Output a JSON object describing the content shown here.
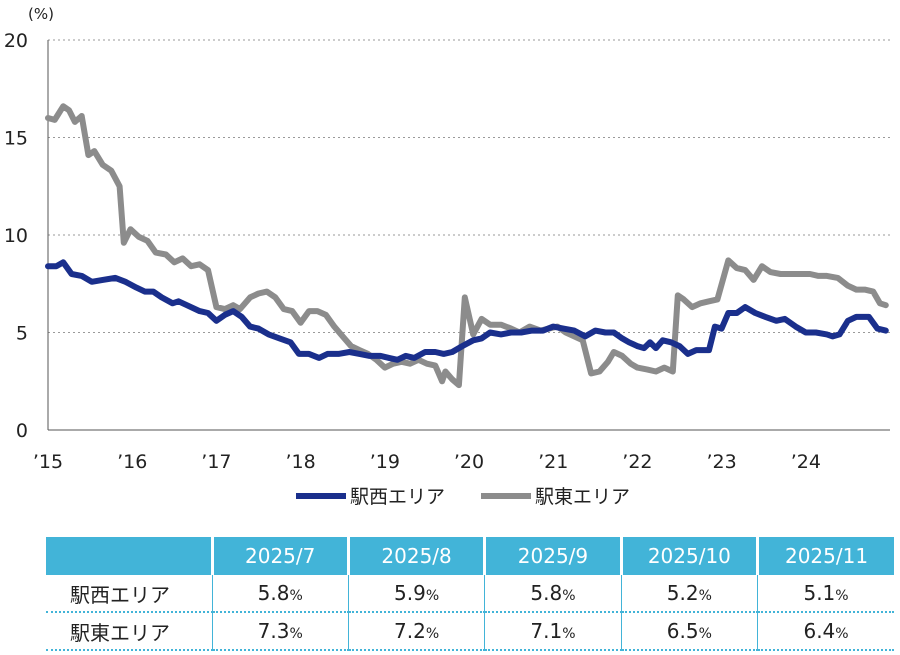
{
  "chart_data": {
    "type": "line",
    "unit_label": "(%)",
    "x_tick_labels": [
      "’15",
      "’16",
      "’17",
      "’18",
      "’19",
      "’20",
      "’21",
      "’22",
      "’23",
      "’24"
    ],
    "x_range": [
      2015.0,
      2025.0
    ],
    "y_ticks": [
      0,
      5,
      10,
      15,
      20
    ],
    "ylim": [
      0,
      20
    ],
    "grid": "horizontal dotted",
    "legend_position": "bottom-center",
    "series": [
      {
        "name": "駅西エリア",
        "color": "#1a2f8c",
        "points": [
          [
            2015.0,
            8.4
          ],
          [
            2015.1,
            8.4
          ],
          [
            2015.18,
            8.6
          ],
          [
            2015.28,
            8.0
          ],
          [
            2015.4,
            7.9
          ],
          [
            2015.52,
            7.6
          ],
          [
            2015.65,
            7.7
          ],
          [
            2015.8,
            7.8
          ],
          [
            2015.92,
            7.6
          ],
          [
            2016.05,
            7.3
          ],
          [
            2016.15,
            7.1
          ],
          [
            2016.25,
            7.1
          ],
          [
            2016.35,
            6.8
          ],
          [
            2016.48,
            6.5
          ],
          [
            2016.55,
            6.6
          ],
          [
            2016.65,
            6.4
          ],
          [
            2016.8,
            6.1
          ],
          [
            2016.9,
            6.0
          ],
          [
            2017.0,
            5.6
          ],
          [
            2017.1,
            5.9
          ],
          [
            2017.2,
            6.1
          ],
          [
            2017.3,
            5.8
          ],
          [
            2017.4,
            5.3
          ],
          [
            2017.5,
            5.2
          ],
          [
            2017.62,
            4.9
          ],
          [
            2017.75,
            4.7
          ],
          [
            2017.88,
            4.5
          ],
          [
            2017.98,
            3.9
          ],
          [
            2018.1,
            3.9
          ],
          [
            2018.22,
            3.7
          ],
          [
            2018.32,
            3.9
          ],
          [
            2018.45,
            3.9
          ],
          [
            2018.58,
            4.0
          ],
          [
            2018.7,
            3.9
          ],
          [
            2018.82,
            3.8
          ],
          [
            2018.95,
            3.8
          ],
          [
            2019.05,
            3.7
          ],
          [
            2019.15,
            3.6
          ],
          [
            2019.25,
            3.8
          ],
          [
            2019.35,
            3.7
          ],
          [
            2019.48,
            4.0
          ],
          [
            2019.6,
            4.0
          ],
          [
            2019.7,
            3.9
          ],
          [
            2019.8,
            4.0
          ],
          [
            2019.92,
            4.3
          ],
          [
            2020.05,
            4.6
          ],
          [
            2020.15,
            4.7
          ],
          [
            2020.25,
            5.0
          ],
          [
            2020.38,
            4.9
          ],
          [
            2020.5,
            5.0
          ],
          [
            2020.62,
            5.0
          ],
          [
            2020.75,
            5.1
          ],
          [
            2020.88,
            5.1
          ],
          [
            2021.0,
            5.3
          ],
          [
            2021.12,
            5.2
          ],
          [
            2021.25,
            5.1
          ],
          [
            2021.38,
            4.8
          ],
          [
            2021.5,
            5.1
          ],
          [
            2021.62,
            5.0
          ],
          [
            2021.72,
            5.0
          ],
          [
            2021.82,
            4.7
          ],
          [
            2021.9,
            4.5
          ],
          [
            2022.0,
            4.3
          ],
          [
            2022.08,
            4.2
          ],
          [
            2022.15,
            4.5
          ],
          [
            2022.22,
            4.2
          ],
          [
            2022.3,
            4.6
          ],
          [
            2022.4,
            4.5
          ],
          [
            2022.5,
            4.3
          ],
          [
            2022.6,
            3.9
          ],
          [
            2022.7,
            4.1
          ],
          [
            2022.85,
            4.1
          ],
          [
            2022.92,
            5.3
          ],
          [
            2023.0,
            5.2
          ],
          [
            2023.08,
            6.0
          ],
          [
            2023.18,
            6.0
          ],
          [
            2023.28,
            6.3
          ],
          [
            2023.4,
            6.0
          ],
          [
            2023.52,
            5.8
          ],
          [
            2023.65,
            5.6
          ],
          [
            2023.75,
            5.7
          ],
          [
            2023.88,
            5.3
          ],
          [
            2024.0,
            5.0
          ],
          [
            2024.12,
            5.0
          ],
          [
            2024.25,
            4.9
          ],
          [
            2024.32,
            4.8
          ],
          [
            2024.4,
            4.9
          ],
          [
            2024.5,
            5.6
          ],
          [
            2024.6,
            5.8
          ],
          [
            2024.75,
            5.8
          ],
          [
            2024.85,
            5.2
          ],
          [
            2024.95,
            5.1
          ]
        ]
      },
      {
        "name": "駅東エリア",
        "color": "#8c8c8c",
        "points": [
          [
            2015.0,
            16.0
          ],
          [
            2015.08,
            15.9
          ],
          [
            2015.18,
            16.6
          ],
          [
            2015.25,
            16.4
          ],
          [
            2015.32,
            15.8
          ],
          [
            2015.4,
            16.1
          ],
          [
            2015.48,
            14.1
          ],
          [
            2015.55,
            14.3
          ],
          [
            2015.65,
            13.6
          ],
          [
            2015.75,
            13.3
          ],
          [
            2015.85,
            12.5
          ],
          [
            2015.9,
            9.6
          ],
          [
            2015.98,
            10.3
          ],
          [
            2016.08,
            9.9
          ],
          [
            2016.18,
            9.7
          ],
          [
            2016.28,
            9.1
          ],
          [
            2016.4,
            9.0
          ],
          [
            2016.5,
            8.6
          ],
          [
            2016.6,
            8.8
          ],
          [
            2016.7,
            8.4
          ],
          [
            2016.8,
            8.5
          ],
          [
            2016.9,
            8.2
          ],
          [
            2017.0,
            6.3
          ],
          [
            2017.1,
            6.2
          ],
          [
            2017.2,
            6.4
          ],
          [
            2017.28,
            6.2
          ],
          [
            2017.4,
            6.8
          ],
          [
            2017.5,
            7.0
          ],
          [
            2017.6,
            7.1
          ],
          [
            2017.7,
            6.8
          ],
          [
            2017.8,
            6.2
          ],
          [
            2017.9,
            6.1
          ],
          [
            2018.0,
            5.5
          ],
          [
            2018.1,
            6.1
          ],
          [
            2018.2,
            6.1
          ],
          [
            2018.3,
            5.9
          ],
          [
            2018.4,
            5.3
          ],
          [
            2018.5,
            4.8
          ],
          [
            2018.6,
            4.3
          ],
          [
            2018.7,
            4.1
          ],
          [
            2018.8,
            3.9
          ],
          [
            2018.9,
            3.6
          ],
          [
            2019.0,
            3.2
          ],
          [
            2019.1,
            3.4
          ],
          [
            2019.2,
            3.5
          ],
          [
            2019.3,
            3.4
          ],
          [
            2019.4,
            3.6
          ],
          [
            2019.5,
            3.4
          ],
          [
            2019.6,
            3.3
          ],
          [
            2019.68,
            2.5
          ],
          [
            2019.72,
            3.0
          ],
          [
            2019.8,
            2.6
          ],
          [
            2019.88,
            2.3
          ],
          [
            2019.95,
            6.8
          ],
          [
            2020.05,
            4.9
          ],
          [
            2020.15,
            5.7
          ],
          [
            2020.25,
            5.4
          ],
          [
            2020.38,
            5.4
          ],
          [
            2020.5,
            5.2
          ],
          [
            2020.6,
            5.0
          ],
          [
            2020.72,
            5.3
          ],
          [
            2020.85,
            5.1
          ],
          [
            2020.95,
            5.2
          ],
          [
            2021.05,
            5.3
          ],
          [
            2021.15,
            5.0
          ],
          [
            2021.25,
            4.8
          ],
          [
            2021.35,
            4.6
          ],
          [
            2021.45,
            2.9
          ],
          [
            2021.55,
            3.0
          ],
          [
            2021.65,
            3.5
          ],
          [
            2021.72,
            4.0
          ],
          [
            2021.82,
            3.8
          ],
          [
            2021.92,
            3.4
          ],
          [
            2022.0,
            3.2
          ],
          [
            2022.12,
            3.1
          ],
          [
            2022.22,
            3.0
          ],
          [
            2022.32,
            3.2
          ],
          [
            2022.42,
            3.0
          ],
          [
            2022.48,
            6.9
          ],
          [
            2022.55,
            6.7
          ],
          [
            2022.65,
            6.3
          ],
          [
            2022.75,
            6.5
          ],
          [
            2022.85,
            6.6
          ],
          [
            2022.95,
            6.7
          ],
          [
            2023.08,
            8.7
          ],
          [
            2023.18,
            8.3
          ],
          [
            2023.28,
            8.2
          ],
          [
            2023.38,
            7.7
          ],
          [
            2023.48,
            8.4
          ],
          [
            2023.58,
            8.1
          ],
          [
            2023.7,
            8.0
          ],
          [
            2023.82,
            8.0
          ],
          [
            2023.95,
            8.0
          ],
          [
            2024.05,
            8.0
          ],
          [
            2024.15,
            7.9
          ],
          [
            2024.25,
            7.9
          ],
          [
            2024.38,
            7.8
          ],
          [
            2024.5,
            7.4
          ],
          [
            2024.6,
            7.2
          ],
          [
            2024.7,
            7.2
          ],
          [
            2024.8,
            7.1
          ],
          [
            2024.88,
            6.5
          ],
          [
            2024.95,
            6.4
          ]
        ]
      }
    ]
  },
  "table": {
    "headers": [
      "",
      "2025/7",
      "2025/8",
      "2025/9",
      "2025/10",
      "2025/11"
    ],
    "rows": [
      {
        "label": "駅西エリア",
        "values": [
          "5.8",
          "5.9",
          "5.8",
          "5.2",
          "5.1"
        ],
        "unit": "%"
      },
      {
        "label": "駅東エリア",
        "values": [
          "7.3",
          "7.2",
          "7.1",
          "6.5",
          "6.4"
        ],
        "unit": "%"
      }
    ]
  }
}
